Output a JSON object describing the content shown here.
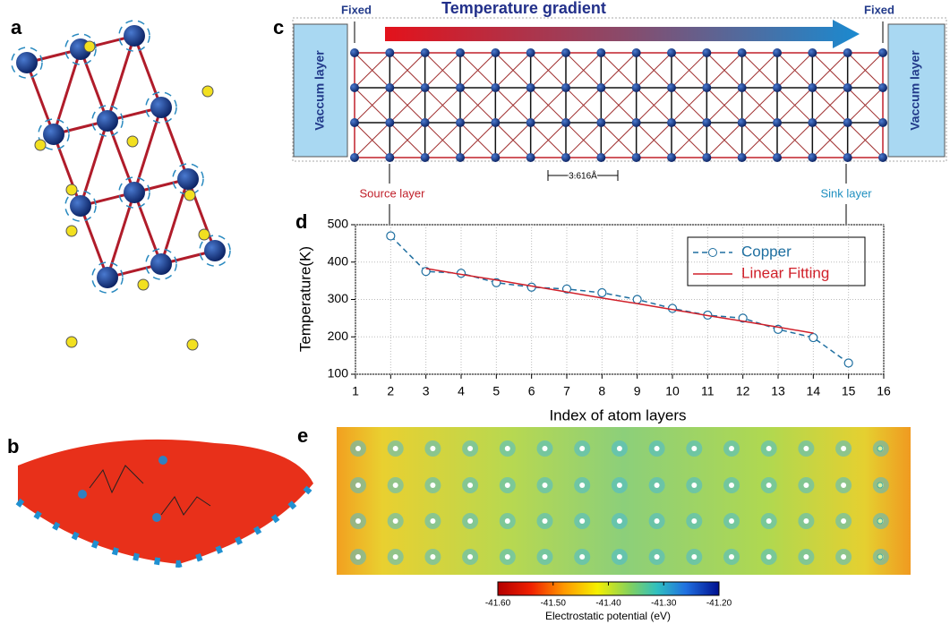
{
  "panel_labels": [
    "a",
    "b",
    "c",
    "d",
    "e"
  ],
  "panel_c": {
    "title": "Temperature gradient",
    "fixed_left": "Fixed",
    "fixed_right": "Fixed",
    "vacuum_left": "Vaccum layer",
    "vacuum_right": "Vaccum layer",
    "spacing": "3.616Å",
    "source": "Source layer",
    "sink": "Sink layer"
  },
  "chart_data": {
    "type": "line",
    "x": [
      2,
      3,
      4,
      5,
      6,
      7,
      8,
      9,
      10,
      11,
      12,
      13,
      14,
      15
    ],
    "series": [
      {
        "name": "Copper",
        "color": "#1f6fa0",
        "values": [
          470,
          375,
          370,
          345,
          333,
          328,
          318,
          300,
          276,
          258,
          250,
          220,
          198,
          130
        ]
      },
      {
        "name": "Linear Fitting",
        "color": "#d0202a",
        "values": [
          null,
          383,
          367,
          352,
          336,
          320,
          304,
          289,
          273,
          257,
          242,
          226,
          210,
          null
        ]
      }
    ],
    "xlabel": "Index of atom layers",
    "ylabel": "Temperature(K)",
    "xlim": [
      1,
      16
    ],
    "xticks": [
      1,
      2,
      3,
      4,
      5,
      6,
      7,
      8,
      9,
      10,
      11,
      12,
      13,
      14,
      15,
      16
    ],
    "ylim": [
      100,
      500
    ],
    "yticks": [
      100,
      200,
      300,
      400,
      500
    ],
    "grid": true,
    "legend": "upper right"
  },
  "colorbar": {
    "label": "Electrostatic potential (eV)",
    "lim": [
      -41.6,
      -41.2
    ],
    "ticks": [
      {
        "value": -41.6,
        "label": "-41.60"
      },
      {
        "value": -41.5,
        "label": "-41.50"
      },
      {
        "value": -41.4,
        "label": "-41.40"
      },
      {
        "value": -41.3,
        "label": "-41.30"
      },
      {
        "value": -41.2,
        "label": "-41.20"
      }
    ]
  }
}
